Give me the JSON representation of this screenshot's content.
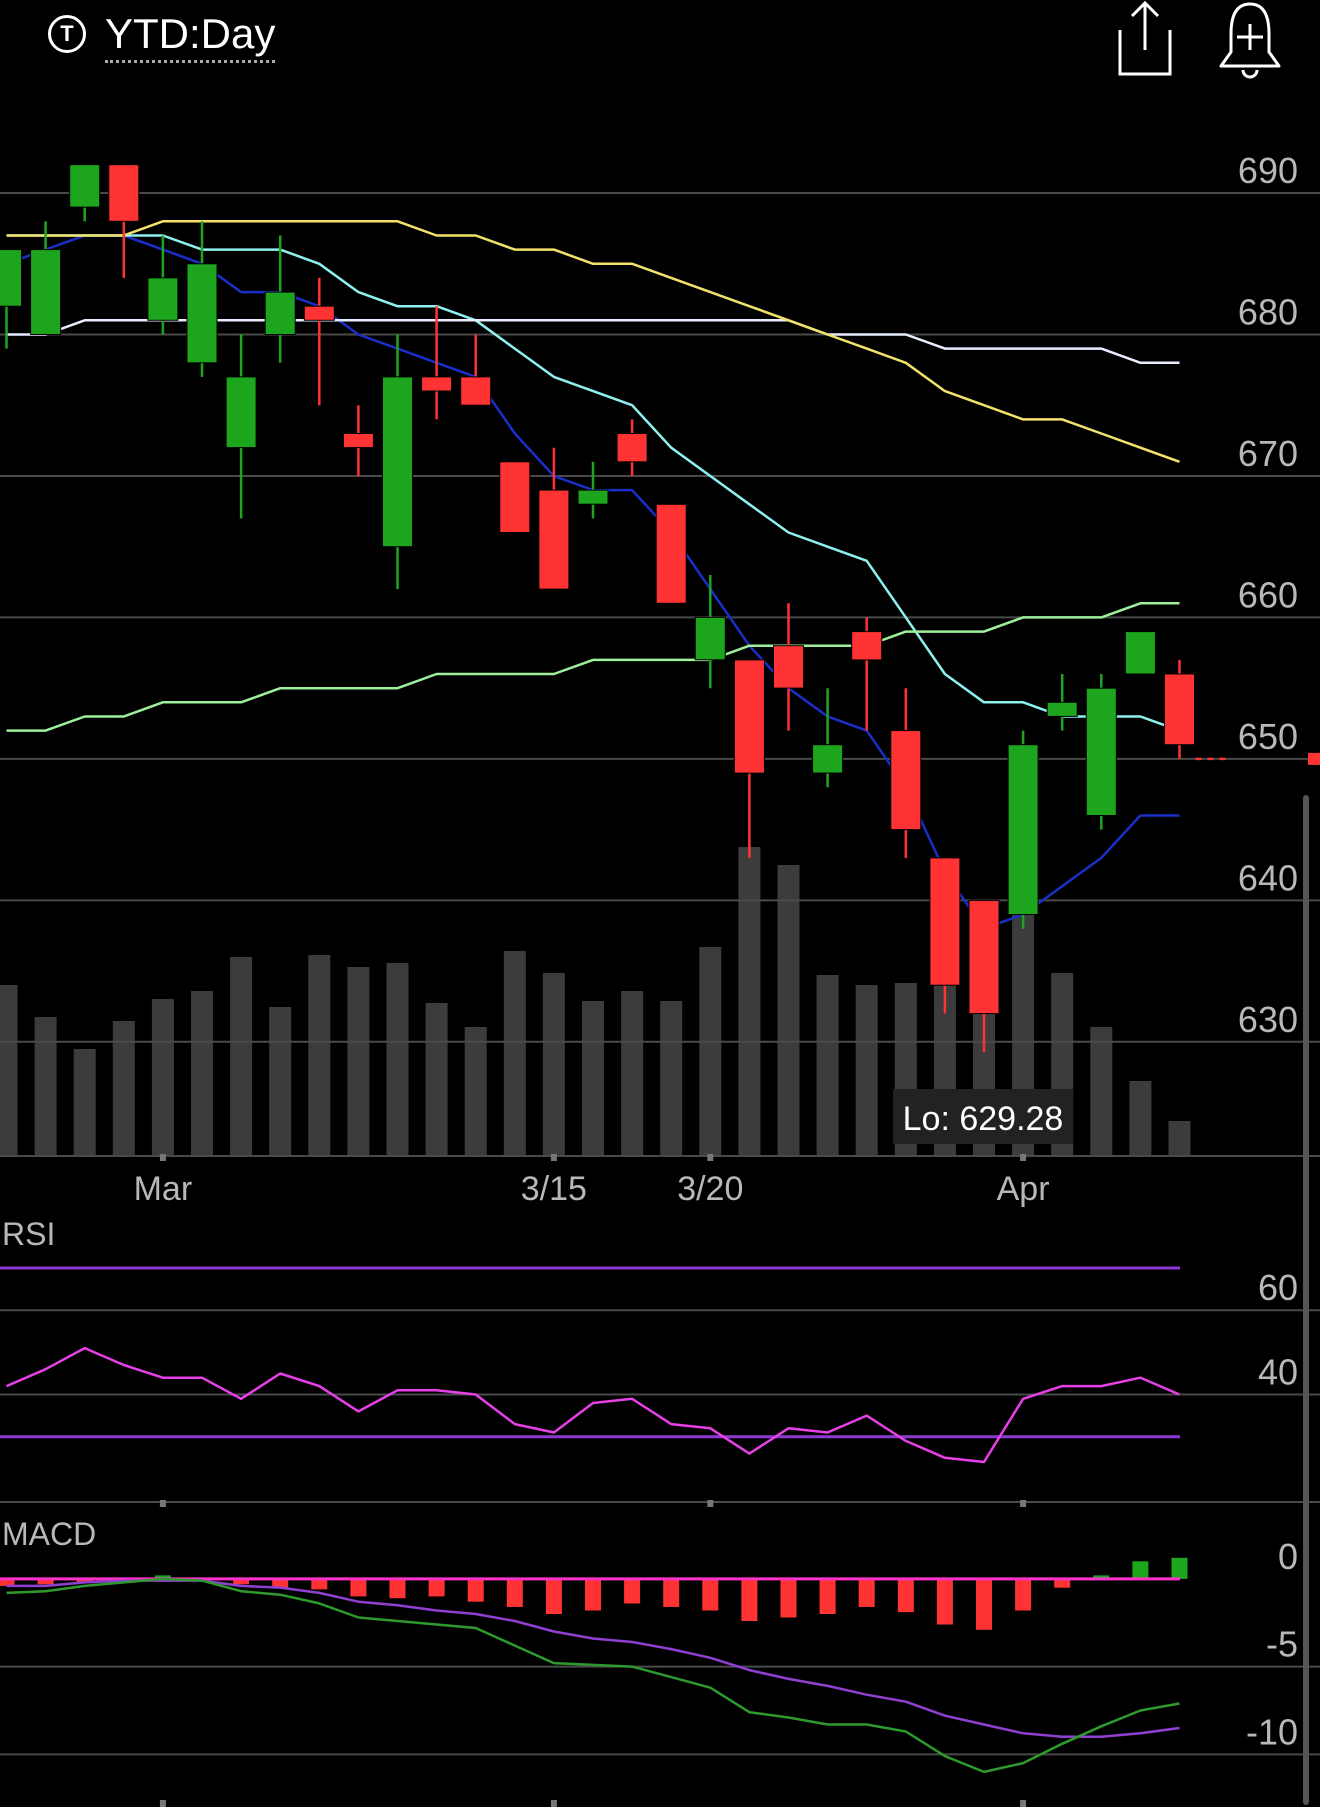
{
  "header": {
    "ticker_badge": "T",
    "title": "YTD:Day",
    "icons": [
      "share-icon",
      "add-alert-bell-icon"
    ]
  },
  "colors": {
    "up": "#1ea51e",
    "down": "#ff3333",
    "volume": "#3c3c3c",
    "ma_fast": "#1a2fc8",
    "ma_cyan": "#8ff0f0",
    "ma_white": "#e8ecff",
    "ma_yellow": "#f2e26a",
    "ma_green": "#9ef09a",
    "rsi_line": "#e640e6",
    "rsi_band": "#8a3ad0",
    "macd_line": "#2e9a2e",
    "macd_signal": "#9040d0",
    "macd_zero": "#ff33cc"
  },
  "price_panel": {
    "y_ticks": [
      "690",
      "680",
      "670",
      "660",
      "650",
      "640",
      "630"
    ],
    "x_ticks": [
      "Mar",
      "3/15",
      "3/20",
      "Apr"
    ],
    "low_label": "Lo: 629.28"
  },
  "rsi_panel": {
    "label": "RSI",
    "y_ticks": [
      "60",
      "40"
    ]
  },
  "macd_panel": {
    "label": "MACD",
    "y_ticks": [
      "0",
      "-5",
      "-10"
    ]
  },
  "chart_data": [
    {
      "type": "candlestick",
      "ylim": [
        622,
        697
      ],
      "current_price": 650,
      "candles": [
        {
          "o": 682,
          "h": 686,
          "l": 679,
          "c": 686
        },
        {
          "o": 680,
          "h": 688,
          "l": 680,
          "c": 686
        },
        {
          "o": 689,
          "h": 692,
          "l": 688,
          "c": 692
        },
        {
          "o": 692,
          "h": 692,
          "l": 684,
          "c": 688
        },
        {
          "o": 681,
          "h": 687,
          "l": 680,
          "c": 684
        },
        {
          "o": 678,
          "h": 688,
          "l": 677,
          "c": 685
        },
        {
          "o": 672,
          "h": 680,
          "l": 667,
          "c": 677
        },
        {
          "o": 680,
          "h": 687,
          "l": 678,
          "c": 683
        },
        {
          "o": 682,
          "h": 684,
          "l": 675,
          "c": 681
        },
        {
          "o": 673,
          "h": 675,
          "l": 670,
          "c": 672
        },
        {
          "o": 665,
          "h": 680,
          "l": 662,
          "c": 677
        },
        {
          "o": 677,
          "h": 682,
          "l": 674,
          "c": 676
        },
        {
          "o": 677,
          "h": 680,
          "l": 675,
          "c": 675
        },
        {
          "o": 671,
          "h": 671,
          "l": 666,
          "c": 666
        },
        {
          "o": 669,
          "h": 672,
          "l": 662,
          "c": 662
        },
        {
          "o": 668,
          "h": 671,
          "l": 667,
          "c": 669
        },
        {
          "o": 673,
          "h": 674,
          "l": 670,
          "c": 671
        },
        {
          "o": 668,
          "h": 668,
          "l": 661,
          "c": 661
        },
        {
          "o": 657,
          "h": 663,
          "l": 655,
          "c": 660
        },
        {
          "o": 657,
          "h": 657,
          "l": 643,
          "c": 649
        },
        {
          "o": 658,
          "h": 661,
          "l": 652,
          "c": 655
        },
        {
          "o": 649,
          "h": 655,
          "l": 648,
          "c": 651
        },
        {
          "o": 659,
          "h": 660,
          "l": 652,
          "c": 657
        },
        {
          "o": 652,
          "h": 655,
          "l": 643,
          "c": 645
        },
        {
          "o": 643,
          "h": 643,
          "l": 632,
          "c": 634
        },
        {
          "o": 640,
          "h": 640,
          "l": 629.28,
          "c": 632
        },
        {
          "o": 639,
          "h": 652,
          "l": 638,
          "c": 651
        },
        {
          "o": 653,
          "h": 656,
          "l": 652,
          "c": 654
        },
        {
          "o": 646,
          "h": 656,
          "l": 645,
          "c": 655
        },
        {
          "o": 656,
          "h": 659,
          "l": 656,
          "c": 659
        },
        {
          "o": 656,
          "h": 657,
          "l": 650,
          "c": 651
        }
      ],
      "volume_relative": [
        0.85,
        0.69,
        0.53,
        0.67,
        0.78,
        0.82,
        0.99,
        0.74,
        1.0,
        0.94,
        0.96,
        0.76,
        0.64,
        1.02,
        0.91,
        0.77,
        0.82,
        0.77,
        1.04,
        1.54,
        1.45,
        0.9,
        0.85,
        0.86,
        0.97,
        0.93,
        1.43,
        0.91,
        0.64,
        0.37,
        0.17
      ],
      "moving_averages": [
        {
          "color_key": "ma_fast",
          "values": [
            685,
            686,
            687,
            687,
            686,
            685,
            683,
            683,
            682,
            680,
            679,
            678,
            677,
            673,
            670,
            669,
            669,
            666,
            662,
            658,
            655,
            653,
            652,
            648,
            642,
            638,
            639,
            641,
            643,
            646,
            646
          ]
        },
        {
          "color_key": "ma_cyan",
          "values": [
            687,
            687,
            687,
            687,
            687,
            686,
            686,
            686,
            685,
            683,
            682,
            682,
            681,
            679,
            677,
            676,
            675,
            672,
            670,
            668,
            666,
            665,
            664,
            660,
            656,
            654,
            654,
            653,
            653,
            653,
            652
          ]
        },
        {
          "color_key": "ma_white",
          "values": [
            680,
            680,
            681,
            681,
            681,
            681,
            681,
            681,
            681,
            681,
            681,
            681,
            681,
            681,
            681,
            681,
            681,
            681,
            681,
            681,
            681,
            680,
            680,
            680,
            679,
            679,
            679,
            679,
            679,
            678,
            678
          ]
        },
        {
          "color_key": "ma_yellow",
          "values": [
            687,
            687,
            687,
            687,
            688,
            688,
            688,
            688,
            688,
            688,
            688,
            687,
            687,
            686,
            686,
            685,
            685,
            684,
            683,
            682,
            681,
            680,
            679,
            678,
            676,
            675,
            674,
            674,
            673,
            672,
            671
          ]
        },
        {
          "color_key": "ma_green",
          "values": [
            652,
            652,
            653,
            653,
            654,
            654,
            654,
            655,
            655,
            655,
            655,
            656,
            656,
            656,
            656,
            657,
            657,
            657,
            657,
            658,
            658,
            658,
            658,
            659,
            659,
            659,
            660,
            660,
            660,
            661,
            661
          ]
        }
      ]
    },
    {
      "type": "line",
      "name": "RSI",
      "ylim": [
        15,
        70
      ],
      "bands": [
        70,
        30
      ],
      "values": [
        42,
        46,
        51,
        47,
        44,
        44,
        39,
        45,
        42,
        36,
        41,
        41,
        40,
        33,
        31,
        38,
        39,
        33,
        32,
        26,
        32,
        31,
        35,
        29,
        25,
        24,
        39,
        42,
        42,
        44,
        40
      ]
    },
    {
      "type": "bar",
      "name": "MACD",
      "ylim": [
        -13,
        2.5
      ],
      "histogram": [
        -0.4,
        -0.3,
        -0.2,
        -0.1,
        0.2,
        -0.1,
        -0.3,
        -0.5,
        -0.6,
        -1.0,
        -1.1,
        -1.0,
        -1.3,
        -1.6,
        -2.0,
        -1.8,
        -1.4,
        -1.6,
        -1.8,
        -2.4,
        -2.2,
        -2.0,
        -1.6,
        -1.9,
        -2.6,
        -2.9,
        -1.8,
        -0.5,
        0.2,
        1.0,
        1.2
      ],
      "macd_line": [
        -0.8,
        -0.7,
        -0.4,
        -0.2,
        0.0,
        -0.1,
        -0.7,
        -0.9,
        -1.4,
        -2.2,
        -2.4,
        -2.6,
        -2.8,
        -3.8,
        -4.8,
        -4.9,
        -5.0,
        -5.6,
        -6.2,
        -7.6,
        -7.9,
        -8.3,
        -8.3,
        -8.7,
        -10.1,
        -11.0,
        -10.5,
        -9.4,
        -8.4,
        -7.5,
        -7.1
      ],
      "signal_line": [
        -0.4,
        -0.4,
        -0.2,
        -0.1,
        -0.1,
        -0.1,
        -0.4,
        -0.5,
        -0.8,
        -1.3,
        -1.5,
        -1.8,
        -2.0,
        -2.4,
        -3.0,
        -3.4,
        -3.6,
        -4.0,
        -4.5,
        -5.2,
        -5.7,
        -6.1,
        -6.6,
        -7.0,
        -7.8,
        -8.3,
        -8.8,
        -9.0,
        -9.0,
        -8.8,
        -8.5
      ]
    }
  ]
}
